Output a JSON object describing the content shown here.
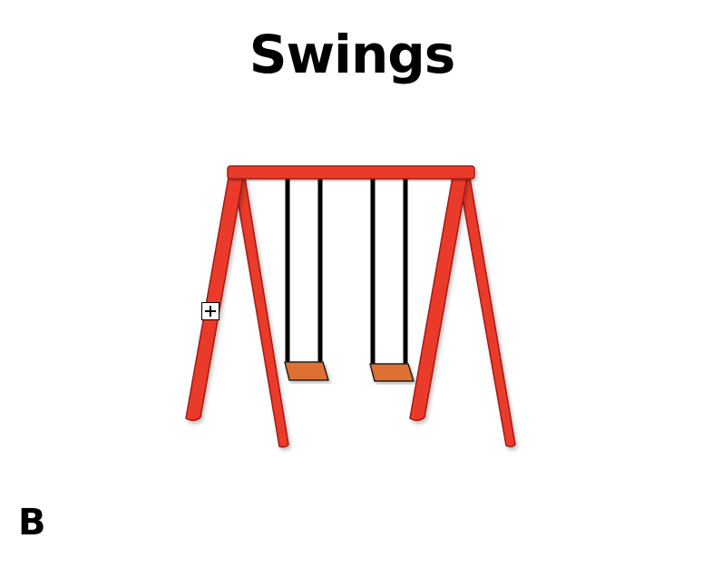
{
  "slide": {
    "title": "Swings",
    "corner_label": "B"
  },
  "colors": {
    "frame_fill": "#ea3a2a",
    "frame_stroke": "#a11a12",
    "chain": "#000000",
    "seat_fill": "#dd7030",
    "seat_stroke": "#202020",
    "background": "#ffffff"
  },
  "icons": {
    "anchor_handle": "move-handle-icon"
  }
}
